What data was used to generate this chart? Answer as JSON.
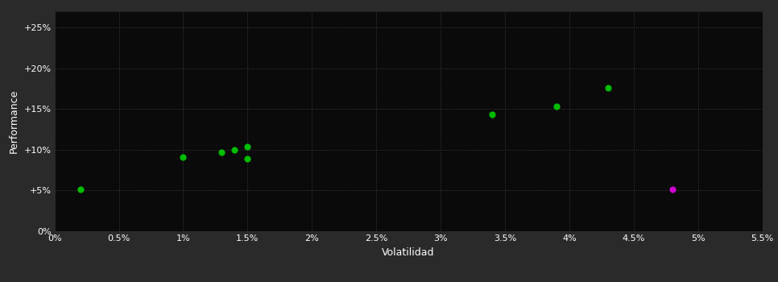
{
  "xlabel": "Volatilidad",
  "ylabel": "Performance",
  "outer_bg_color": "#2a2a2a",
  "plot_bg_color": "#0a0a0a",
  "grid_color": "#444444",
  "text_color": "#ffffff",
  "xlim": [
    0,
    0.055
  ],
  "ylim": [
    0,
    0.27
  ],
  "xticks": [
    0.0,
    0.005,
    0.01,
    0.015,
    0.02,
    0.025,
    0.03,
    0.035,
    0.04,
    0.045,
    0.05,
    0.055
  ],
  "yticks": [
    0.0,
    0.05,
    0.1,
    0.15,
    0.2,
    0.25
  ],
  "xtick_labels": [
    "0%",
    "0.5%",
    "1%",
    "1.5%",
    "2%",
    "2.5%",
    "3%",
    "3.5%",
    "4%",
    "4.5%",
    "5%",
    "5.5%"
  ],
  "ytick_labels": [
    "0%",
    "+5%",
    "+10%",
    "+15%",
    "+20%",
    "+25%"
  ],
  "green_points": [
    [
      0.002,
      0.051
    ],
    [
      0.01,
      0.091
    ],
    [
      0.013,
      0.097
    ],
    [
      0.014,
      0.1
    ],
    [
      0.015,
      0.104
    ],
    [
      0.015,
      0.089
    ],
    [
      0.034,
      0.143
    ],
    [
      0.039,
      0.153
    ],
    [
      0.043,
      0.176
    ]
  ],
  "magenta_points": [
    [
      0.048,
      0.051
    ]
  ],
  "point_size": 35,
  "green_color": "#00bb00",
  "magenta_color": "#cc00cc",
  "font_size_ticks": 8,
  "font_size_labels": 9
}
